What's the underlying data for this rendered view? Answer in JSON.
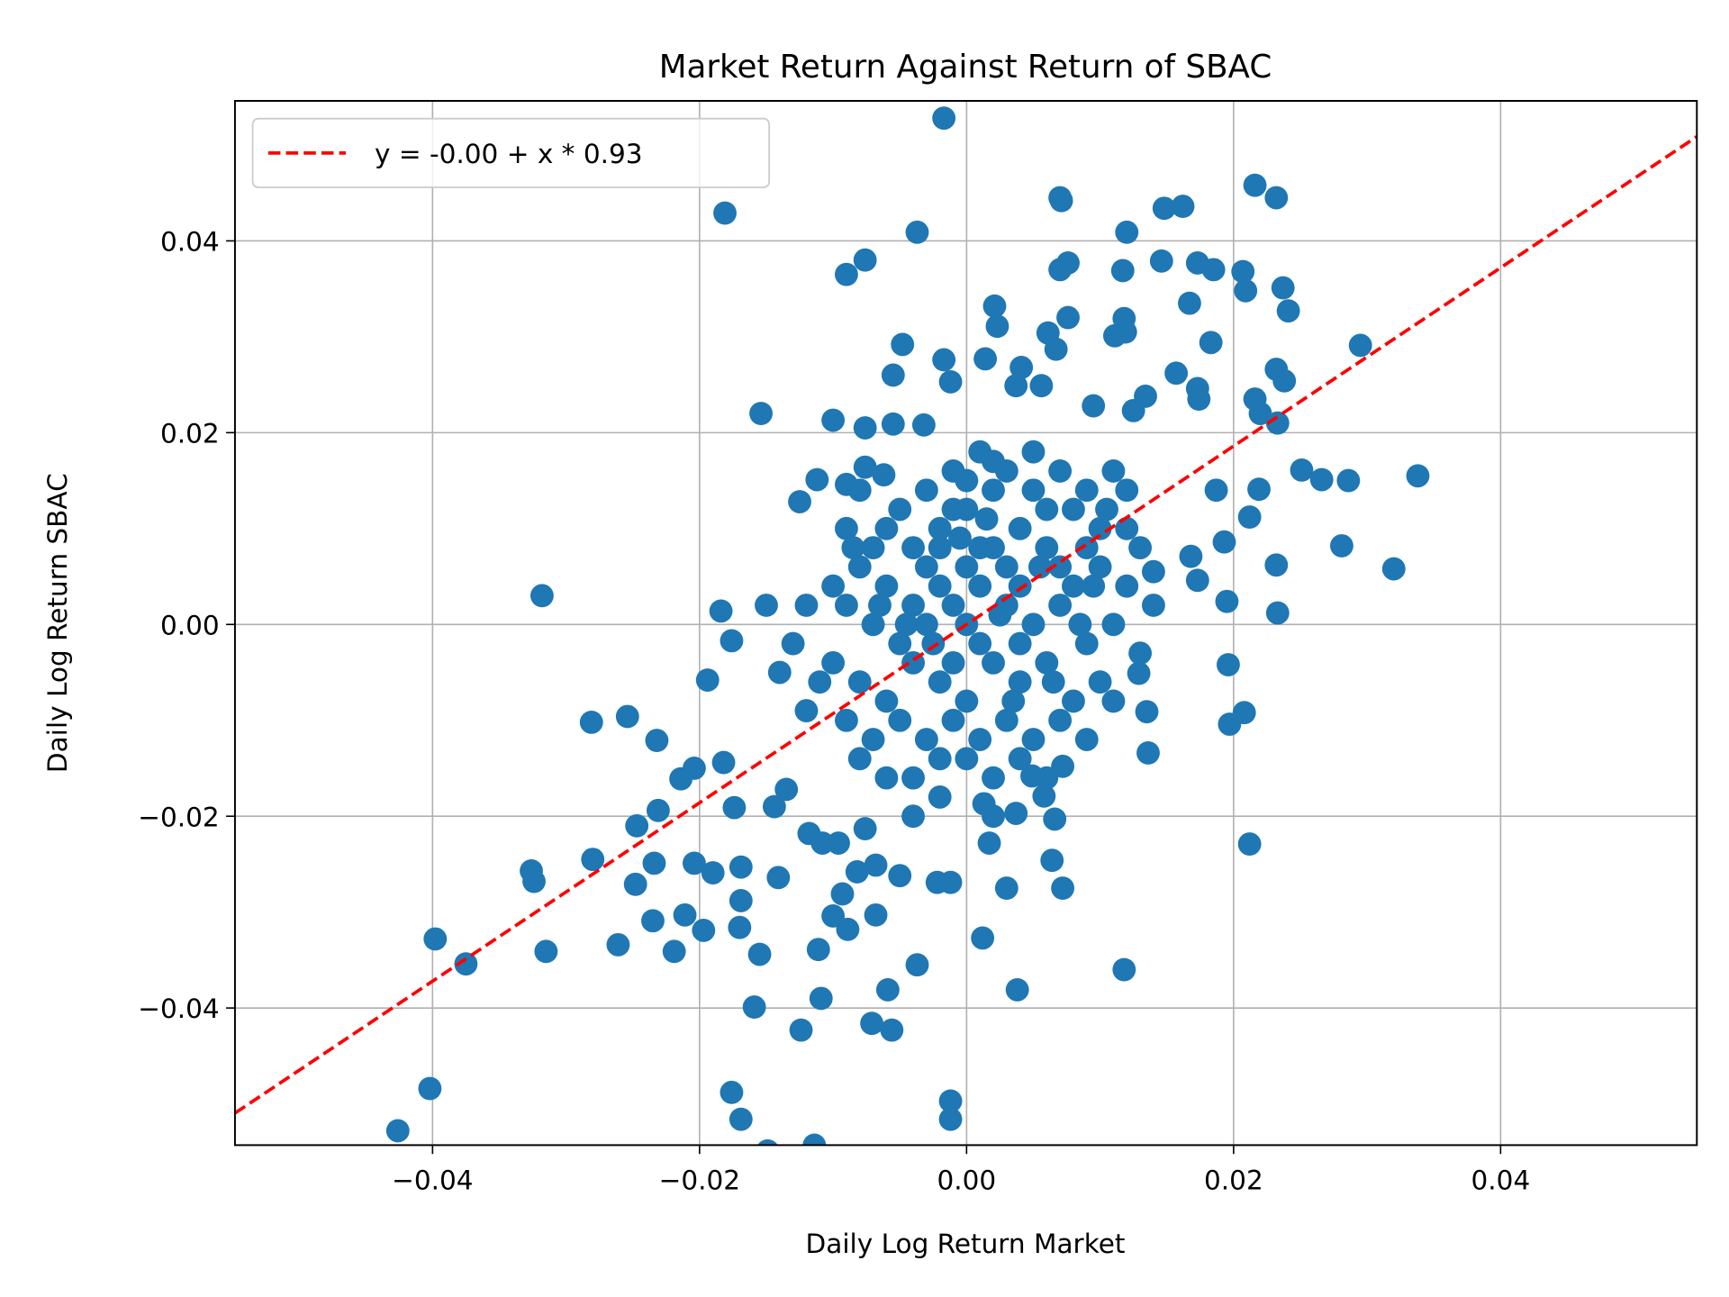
{
  "chart_data": {
    "type": "scatter",
    "title": "Market Return Against Return of SBAC",
    "xlabel": "Daily Log Return Market",
    "ylabel": "Daily Log Return SBAC",
    "xlim": [
      -0.0548,
      0.0547
    ],
    "ylim": [
      -0.0543,
      0.0546
    ],
    "xticks": [
      -0.04,
      -0.02,
      0.0,
      0.02,
      0.04
    ],
    "xtick_labels": [
      "−0.04",
      "−0.02",
      "0.00",
      "0.02",
      "0.04"
    ],
    "yticks": [
      -0.04,
      -0.02,
      0.0,
      0.02,
      0.04
    ],
    "ytick_labels": [
      "−0.04",
      "−0.02",
      "0.00",
      "0.02",
      "0.04"
    ],
    "grid": true,
    "legend": {
      "placement": "top-left",
      "entries": [
        {
          "label": "y = -0.00 + x * 0.93",
          "style": "dashed",
          "color": "#ff0000"
        }
      ]
    },
    "regression": {
      "intercept": 0.0,
      "slope": 0.93,
      "color": "#ff0000"
    },
    "point_color": "#1f77b4",
    "points": [
      [
        -0.0017,
        0.0528
      ],
      [
        -0.0181,
        0.0429
      ],
      [
        -0.0037,
        0.0409
      ],
      [
        -0.009,
        0.0365
      ],
      [
        -0.0076,
        0.038
      ],
      [
        0.007,
        0.0445
      ],
      [
        0.0071,
        0.0442
      ],
      [
        0.012,
        0.0409
      ],
      [
        0.0148,
        0.0434
      ],
      [
        0.0162,
        0.0436
      ],
      [
        0.0216,
        0.0458
      ],
      [
        0.0232,
        0.0445
      ],
      [
        0.0146,
        0.0379
      ],
      [
        0.0173,
        0.0377
      ],
      [
        0.0185,
        0.037
      ],
      [
        0.0207,
        0.0368
      ],
      [
        0.0209,
        0.0348
      ],
      [
        0.0237,
        0.0351
      ],
      [
        0.0241,
        0.0327
      ],
      [
        0.0167,
        0.0335
      ],
      [
        0.0117,
        0.0369
      ],
      [
        0.0076,
        0.0377
      ],
      [
        0.007,
        0.037
      ],
      [
        0.0021,
        0.0332
      ],
      [
        0.0023,
        0.0311
      ],
      [
        0.0076,
        0.032
      ],
      [
        0.0061,
        0.0304
      ],
      [
        0.0067,
        0.0287
      ],
      [
        0.0118,
        0.0319
      ],
      [
        0.0119,
        0.0305
      ],
      [
        0.0111,
        0.0301
      ],
      [
        -0.0048,
        0.0292
      ],
      [
        -0.0055,
        0.026
      ],
      [
        -0.0017,
        0.0276
      ],
      [
        -0.0012,
        0.0253
      ],
      [
        0.0014,
        0.0277
      ],
      [
        0.0037,
        0.0249
      ],
      [
        0.0041,
        0.0268
      ],
      [
        0.0056,
        0.0249
      ],
      [
        0.0157,
        0.0262
      ],
      [
        0.0173,
        0.0246
      ],
      [
        0.0174,
        0.0235
      ],
      [
        0.0183,
        0.0294
      ],
      [
        0.0295,
        0.0291
      ],
      [
        0.0232,
        0.0266
      ],
      [
        0.0238,
        0.0254
      ],
      [
        0.0216,
        0.0235
      ],
      [
        0.022,
        0.022
      ],
      [
        0.0233,
        0.021
      ],
      [
        -0.0154,
        0.022
      ],
      [
        -0.01,
        0.0213
      ],
      [
        -0.0076,
        0.0205
      ],
      [
        -0.0055,
        0.0209
      ],
      [
        -0.0032,
        0.0208
      ],
      [
        0.0095,
        0.0228
      ],
      [
        0.0125,
        0.0223
      ],
      [
        0.0134,
        0.0238
      ],
      [
        0.0251,
        0.0161
      ],
      [
        0.0266,
        0.0151
      ],
      [
        0.0286,
        0.015
      ],
      [
        0.0338,
        0.0155
      ],
      [
        0.0219,
        0.0141
      ],
      [
        0.0187,
        0.014
      ],
      [
        0.0212,
        0.0112
      ],
      [
        0.0281,
        0.0082
      ],
      [
        0.032,
        0.0058
      ],
      [
        0.0232,
        0.0062
      ],
      [
        0.0233,
        0.0012
      ],
      [
        0.0195,
        0.0024
      ],
      [
        0.0193,
        0.0086
      ],
      [
        0.0168,
        0.0071
      ],
      [
        0.0173,
        0.0046
      ],
      [
        0.014,
        0.0055
      ],
      [
        -0.0125,
        0.0128
      ],
      [
        -0.0112,
        0.0151
      ],
      [
        -0.009,
        0.0146
      ],
      [
        -0.0076,
        0.0164
      ],
      [
        -0.0062,
        0.0156
      ],
      [
        -0.0318,
        0.003
      ],
      [
        -0.0184,
        0.0014
      ],
      [
        -0.0176,
        -0.0017
      ],
      [
        -0.0194,
        -0.0058
      ],
      [
        -0.0281,
        -0.0102
      ],
      [
        -0.0254,
        -0.0096
      ],
      [
        -0.0232,
        -0.0121
      ],
      [
        -0.0214,
        -0.0161
      ],
      [
        -0.0204,
        -0.015
      ],
      [
        -0.0247,
        -0.021
      ],
      [
        -0.0231,
        -0.0194
      ],
      [
        -0.028,
        -0.0245
      ],
      [
        -0.0326,
        -0.0257
      ],
      [
        -0.0324,
        -0.0268
      ],
      [
        -0.0248,
        -0.0271
      ],
      [
        -0.0234,
        -0.0249
      ],
      [
        -0.0204,
        -0.0249
      ],
      [
        -0.019,
        -0.0259
      ],
      [
        -0.0169,
        -0.0253
      ],
      [
        -0.0235,
        -0.0309
      ],
      [
        -0.0211,
        -0.0303
      ],
      [
        -0.0197,
        -0.0319
      ],
      [
        -0.0261,
        -0.0334
      ],
      [
        -0.0219,
        -0.0341
      ],
      [
        -0.0315,
        -0.0341
      ],
      [
        -0.0398,
        -0.0328
      ],
      [
        -0.0375,
        -0.0354
      ],
      [
        -0.0402,
        -0.0484
      ],
      [
        -0.0426,
        -0.0528
      ],
      [
        -0.0176,
        -0.0488
      ],
      [
        -0.0169,
        -0.0516
      ],
      [
        -0.0149,
        -0.0549
      ],
      [
        -0.0114,
        -0.0543
      ],
      [
        -0.0012,
        -0.0497
      ],
      [
        -0.0012,
        -0.0516
      ],
      [
        -0.0159,
        -0.0399
      ],
      [
        -0.0124,
        -0.0423
      ],
      [
        -0.0109,
        -0.039
      ],
      [
        -0.0071,
        -0.0416
      ],
      [
        -0.0056,
        -0.0423
      ],
      [
        -0.0059,
        -0.0381
      ],
      [
        -0.0037,
        -0.0355
      ],
      [
        0.0038,
        -0.0381
      ],
      [
        0.0012,
        -0.0327
      ],
      [
        0.0118,
        -0.036
      ],
      [
        0.0212,
        -0.0229
      ],
      [
        0.0196,
        -0.0042
      ],
      [
        0.0197,
        -0.0104
      ],
      [
        0.0208,
        -0.0092
      ],
      [
        0.0135,
        -0.0091
      ],
      [
        0.0136,
        -0.0134
      ],
      [
        0.0129,
        -0.0051
      ],
      [
        0.0072,
        -0.0148
      ],
      [
        0.0066,
        -0.0203
      ],
      [
        0.0064,
        -0.0246
      ],
      [
        0.0072,
        -0.0275
      ],
      [
        0.003,
        -0.0275
      ],
      [
        -0.0155,
        -0.0344
      ],
      [
        -0.017,
        -0.0316
      ],
      [
        -0.0141,
        -0.0264
      ],
      [
        -0.0169,
        -0.0288
      ],
      [
        -0.0111,
        -0.0339
      ],
      [
        -0.01,
        -0.0304
      ],
      [
        -0.0089,
        -0.0318
      ],
      [
        -0.0182,
        -0.0144
      ],
      [
        -0.0174,
        -0.0191
      ],
      [
        -0.0144,
        -0.019
      ],
      [
        -0.0135,
        -0.0172
      ],
      [
        -0.0118,
        -0.0218
      ],
      [
        -0.0108,
        -0.0228
      ],
      [
        -0.0096,
        -0.0228
      ],
      [
        -0.0076,
        -0.0213
      ],
      [
        -0.0068,
        -0.0251
      ],
      [
        -0.005,
        -0.0262
      ],
      [
        -0.0068,
        -0.0303
      ],
      [
        -0.0093,
        -0.0281
      ],
      [
        -0.0082,
        -0.0258
      ],
      [
        -0.0022,
        -0.0269
      ],
      [
        -0.0012,
        -0.0269
      ],
      [
        0.0017,
        -0.0228
      ],
      [
        0.0013,
        -0.0187
      ],
      [
        0.0037,
        -0.0197
      ],
      [
        0.0058,
        -0.0179
      ],
      [
        0.0049,
        -0.0158
      ],
      [
        -0.008,
        0.006
      ],
      [
        -0.006,
        0.004
      ],
      [
        -0.004,
        0.008
      ],
      [
        -0.002,
        0.01
      ],
      [
        0,
        0.012
      ],
      [
        0.002,
        0.014
      ],
      [
        0.004,
        0.01
      ],
      [
        0.006,
        0.008
      ],
      [
        0.008,
        0.012
      ],
      [
        0.01,
        0.006
      ],
      [
        -0.005,
        0.012
      ],
      [
        -0.003,
        0.014
      ],
      [
        -0.001,
        0.016
      ],
      [
        0.001,
        0.018
      ],
      [
        0.003,
        0.016
      ],
      [
        0.005,
        0.018
      ],
      [
        0.007,
        0.016
      ],
      [
        0.009,
        0.014
      ],
      [
        0.011,
        0.016
      ],
      [
        0.012,
        0.01
      ],
      [
        -0.009,
        0.002
      ],
      [
        -0.007,
        0
      ],
      [
        -0.005,
        -0.002
      ],
      [
        -0.003,
        0
      ],
      [
        -0.001,
        0.002
      ],
      [
        0.001,
        0.004
      ],
      [
        0.003,
        0.002
      ],
      [
        0.005,
        0
      ],
      [
        0.007,
        0.002
      ],
      [
        0.009,
        -0.002
      ],
      [
        0.011,
        0
      ],
      [
        -0.01,
        -0.004
      ],
      [
        -0.008,
        -0.006
      ],
      [
        -0.006,
        -0.008
      ],
      [
        -0.004,
        -0.004
      ],
      [
        -0.002,
        -0.006
      ],
      [
        0,
        -0.008
      ],
      [
        0.002,
        -0.004
      ],
      [
        0.004,
        -0.006
      ],
      [
        0.006,
        -0.004
      ],
      [
        0.008,
        -0.008
      ],
      [
        0.01,
        -0.006
      ],
      [
        -0.009,
        -0.01
      ],
      [
        -0.007,
        -0.012
      ],
      [
        -0.005,
        -0.01
      ],
      [
        -0.003,
        -0.012
      ],
      [
        -0.001,
        -0.01
      ],
      [
        0.001,
        -0.012
      ],
      [
        0.003,
        -0.01
      ],
      [
        0.005,
        -0.012
      ],
      [
        0.007,
        -0.01
      ],
      [
        0.009,
        -0.012
      ],
      [
        -0.004,
        -0.016
      ],
      [
        -0.002,
        -0.018
      ],
      [
        0,
        -0.014
      ],
      [
        0.002,
        -0.016
      ],
      [
        0.004,
        -0.014
      ],
      [
        0.006,
        -0.016
      ],
      [
        -0.006,
        -0.016
      ],
      [
        -0.008,
        -0.014
      ],
      [
        -0.012,
        0.002
      ],
      [
        -0.013,
        -0.002
      ],
      [
        -0.011,
        -0.006
      ],
      [
        -0.014,
        -0.005
      ],
      [
        -0.015,
        0.002
      ],
      [
        -0.012,
        -0.009
      ],
      [
        -0.01,
        0.004
      ],
      [
        -0.002,
        0.004
      ],
      [
        0,
        0
      ],
      [
        0.002,
        0.008
      ],
      [
        -0.004,
        0.002
      ],
      [
        0.004,
        0.004
      ],
      [
        0.006,
        0.012
      ],
      [
        -0.006,
        0.01
      ],
      [
        0.008,
        0.004
      ],
      [
        0.01,
        0.01
      ],
      [
        0.012,
        0.004
      ],
      [
        0.013,
        0.008
      ],
      [
        0.014,
        0.002
      ],
      [
        0.013,
        -0.003
      ],
      [
        0.011,
        -0.008
      ],
      [
        0.012,
        0.014
      ],
      [
        -0.001,
        -0.004
      ],
      [
        0.001,
        0.008
      ],
      [
        -0.003,
        0.006
      ],
      [
        0.003,
        0.006
      ],
      [
        0.0,
        0.006
      ],
      [
        -0.001,
        0.012
      ],
      [
        0.001,
        -0.002
      ],
      [
        0.005,
        0.014
      ],
      [
        -0.007,
        0.008
      ],
      [
        -0.009,
        0.01
      ],
      [
        -0.008,
        0.014
      ],
      [
        0.007,
        0.006
      ],
      [
        0.009,
        0.008
      ],
      [
        -0.002,
        -0.014
      ],
      [
        0.002,
        -0.02
      ],
      [
        -0.004,
        -0.02
      ],
      [
        0.004,
        -0.002
      ],
      [
        -0.0005,
        0.009
      ],
      [
        0.0015,
        0.011
      ],
      [
        0.0025,
        0.001
      ],
      [
        -0.0025,
        -0.002
      ],
      [
        0.0035,
        -0.008
      ],
      [
        0.0055,
        0.006
      ],
      [
        -0.0045,
        0.0
      ],
      [
        0.0065,
        -0.006
      ],
      [
        0.0085,
        0.0
      ],
      [
        0.0095,
        0.004
      ],
      [
        0.0105,
        0.012
      ],
      [
        -0.0065,
        0.002
      ],
      [
        -0.0085,
        0.008
      ],
      [
        0.0,
        0.015
      ],
      [
        0.002,
        0.017
      ],
      [
        -0.002,
        0.008
      ]
    ]
  }
}
